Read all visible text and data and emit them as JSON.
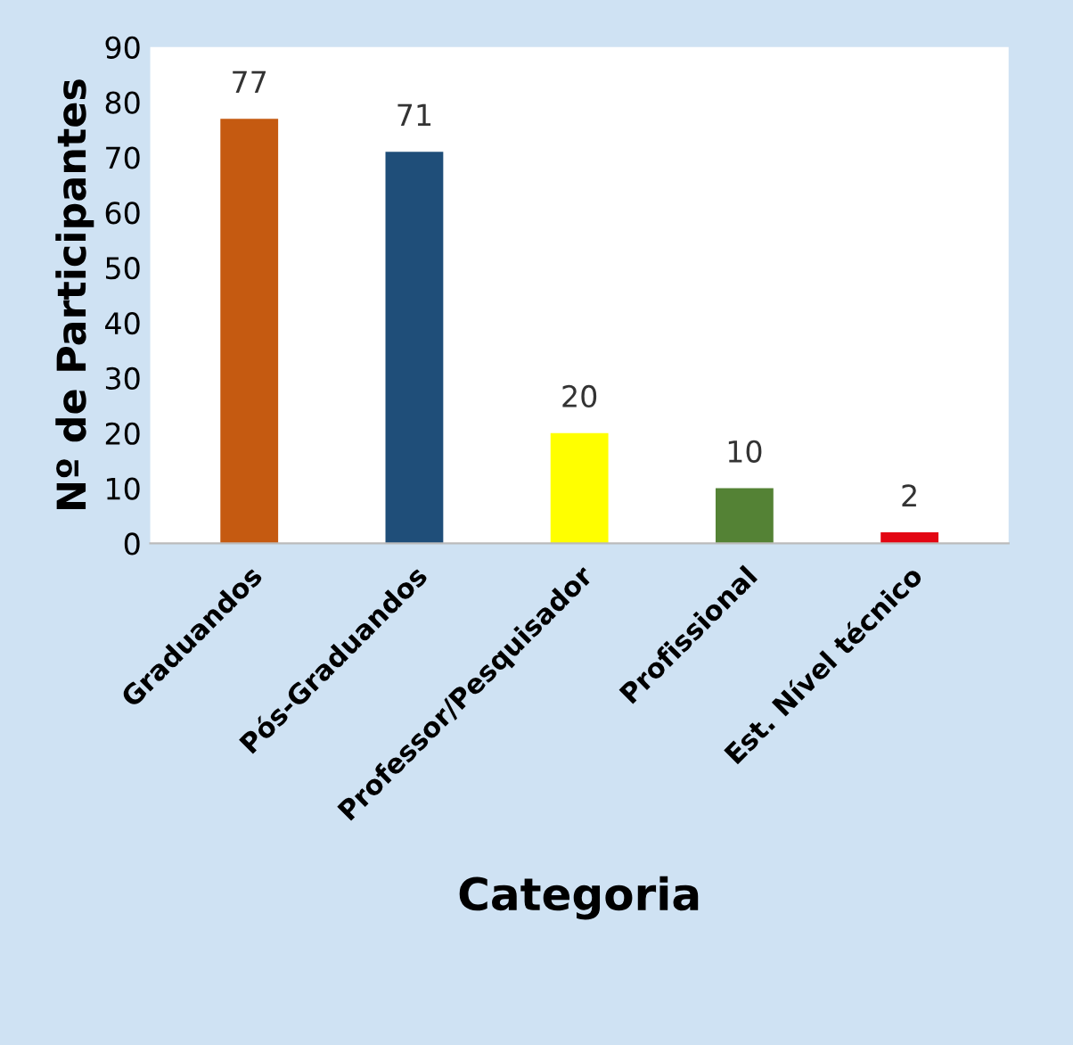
{
  "chart_data": {
    "type": "bar",
    "xlabel": "Categoria",
    "ylabel": "Nº de Participantes",
    "categories": [
      "Graduandos",
      "Pós-Graduandos",
      "Professor/Pesquisador",
      "Profissional",
      "Est. Nível técnico"
    ],
    "values": [
      77,
      71,
      20,
      10,
      2
    ],
    "colors": [
      "#c55a11",
      "#1f4e79",
      "#ffff00",
      "#548235",
      "#e30613"
    ],
    "ylim": [
      0,
      90
    ],
    "yticks": [
      0,
      10,
      20,
      30,
      40,
      50,
      60,
      70,
      80,
      90
    ],
    "data_labels": true,
    "grid": false,
    "legend": false
  }
}
